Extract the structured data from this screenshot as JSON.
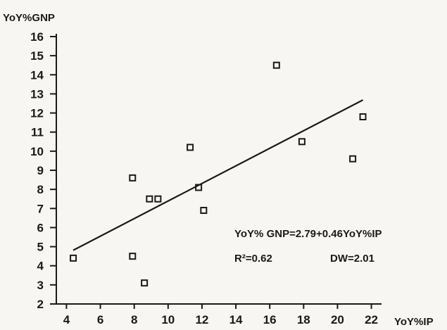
{
  "chart_data": {
    "type": "scatter",
    "xlabel": "YoY%IP",
    "ylabel": "YoY%GNP",
    "xlim": [
      3.4,
      22.6
    ],
    "ylim": [
      2,
      16
    ],
    "xticks": [
      4,
      6,
      8,
      10,
      12,
      14,
      16,
      18,
      20,
      22
    ],
    "yticks": [
      2,
      3,
      4,
      5,
      6,
      7,
      8,
      9,
      10,
      11,
      12,
      13,
      14,
      15,
      16
    ],
    "points": [
      {
        "x": 4.4,
        "y": 4.4
      },
      {
        "x": 7.9,
        "y": 8.6
      },
      {
        "x": 7.9,
        "y": 4.5
      },
      {
        "x": 8.6,
        "y": 3.1
      },
      {
        "x": 8.9,
        "y": 7.5
      },
      {
        "x": 9.4,
        "y": 7.5
      },
      {
        "x": 11.3,
        "y": 10.2
      },
      {
        "x": 11.8,
        "y": 8.1
      },
      {
        "x": 12.1,
        "y": 6.9
      },
      {
        "x": 16.4,
        "y": 14.5
      },
      {
        "x": 17.9,
        "y": 10.5
      },
      {
        "x": 20.9,
        "y": 9.6
      },
      {
        "x": 21.5,
        "y": 11.8
      }
    ],
    "regression": {
      "intercept": 2.79,
      "slope": 0.46,
      "x_range": [
        4.4,
        21.5
      ]
    },
    "annotations": {
      "equation": "YoY% GNP=2.79+0.46YoY%IP",
      "r2": "R²=0.62",
      "dw": "DW=2.01"
    },
    "grid": false,
    "colors": {
      "ink": "#1a1a1a",
      "background": "#f7f6f2"
    }
  }
}
